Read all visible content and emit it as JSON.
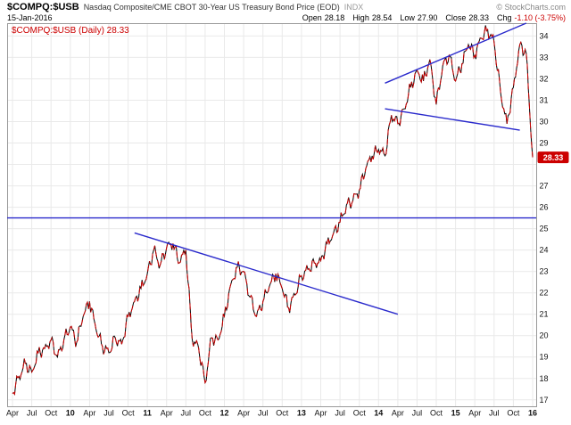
{
  "header": {
    "symbol": "$COMPQ:$USB",
    "description": "Nasdaq Composite/CME CBOT 30-Year US Treasury Bond Price (EOD)",
    "exchange": "INDX",
    "copyright": "© StockCharts.com",
    "date": "15-Jan-2016",
    "quote": {
      "open_label": "Open",
      "open": "28.18",
      "high_label": "High",
      "high": "28.54",
      "low_label": "Low",
      "low": "27.90",
      "close_label": "Close",
      "close": "28.33",
      "chg_label": "Chg",
      "chg": "-1.10 (-3.75%)"
    },
    "legend": "$COMPQ:$USB (Daily) 28.33"
  },
  "colors": {
    "price_line_primary": "#cc0000",
    "price_line_secondary": "#000000",
    "trendline": "#2a2acc",
    "last_price_box": "#cc0000",
    "grid": "#e9e9e9",
    "plot_border": "#999999"
  },
  "chart_data": {
    "type": "line",
    "scale": "linear",
    "title": "$COMPQ:$USB (Daily)",
    "interval": "monthly-sampled daily series",
    "last_price": 28.33,
    "ylim": [
      16.7,
      34.6
    ],
    "y_ticks": [
      34,
      33,
      32,
      31,
      30,
      29,
      28,
      27,
      26,
      25,
      24,
      23,
      22,
      21,
      20,
      19,
      18,
      17
    ],
    "months": [
      "2009-04",
      "2009-05",
      "2009-06",
      "2009-07",
      "2009-08",
      "2009-09",
      "2009-10",
      "2009-11",
      "2009-12",
      "2010-01",
      "2010-02",
      "2010-03",
      "2010-04",
      "2010-05",
      "2010-06",
      "2010-07",
      "2010-08",
      "2010-09",
      "2010-10",
      "2010-11",
      "2010-12",
      "2011-01",
      "2011-02",
      "2011-03",
      "2011-04",
      "2011-05",
      "2011-06",
      "2011-07",
      "2011-08",
      "2011-09",
      "2011-10",
      "2011-11",
      "2011-12",
      "2012-01",
      "2012-02",
      "2012-03",
      "2012-04",
      "2012-05",
      "2012-06",
      "2012-07",
      "2012-08",
      "2012-09",
      "2012-10",
      "2012-11",
      "2012-12",
      "2013-01",
      "2013-02",
      "2013-03",
      "2013-04",
      "2013-05",
      "2013-06",
      "2013-07",
      "2013-08",
      "2013-09",
      "2013-10",
      "2013-11",
      "2013-12",
      "2014-01",
      "2014-02",
      "2014-03",
      "2014-04",
      "2014-05",
      "2014-06",
      "2014-07",
      "2014-08",
      "2014-09",
      "2014-10",
      "2014-11",
      "2014-12",
      "2015-01",
      "2015-02",
      "2015-03",
      "2015-04",
      "2015-05",
      "2015-06",
      "2015-07",
      "2015-08",
      "2015-09",
      "2015-10",
      "2015-11",
      "2015-12",
      "2016-01"
    ],
    "values": [
      17.3,
      18.1,
      18.7,
      18.3,
      19.2,
      19.4,
      19.8,
      19.0,
      19.8,
      20.4,
      19.7,
      20.9,
      21.6,
      20.3,
      19.5,
      19.2,
      19.9,
      19.6,
      20.9,
      21.6,
      22.2,
      22.9,
      24.0,
      23.3,
      24.1,
      24.3,
      23.4,
      24.0,
      19.8,
      19.4,
      17.8,
      19.9,
      19.8,
      20.9,
      22.4,
      23.2,
      23.0,
      21.8,
      20.9,
      21.6,
      22.3,
      22.9,
      22.2,
      21.3,
      21.9,
      22.8,
      23.1,
      23.4,
      23.5,
      24.3,
      24.8,
      25.3,
      26.1,
      26.3,
      26.8,
      27.8,
      28.4,
      28.7,
      28.4,
      30.3,
      29.9,
      30.6,
      31.6,
      32.4,
      31.9,
      32.9,
      30.8,
      32.6,
      33.1,
      31.9,
      32.7,
      33.6,
      33.1,
      33.9,
      34.3,
      33.7,
      31.4,
      29.9,
      31.6,
      33.6,
      33.2,
      28.33
    ],
    "x_ticks": [
      {
        "m": "2009-04",
        "label": "Apr"
      },
      {
        "m": "2009-07",
        "label": "Jul"
      },
      {
        "m": "2009-10",
        "label": "Oct"
      },
      {
        "m": "2010-01",
        "label": "10",
        "bold": true
      },
      {
        "m": "2010-04",
        "label": "Apr"
      },
      {
        "m": "2010-07",
        "label": "Jul"
      },
      {
        "m": "2010-10",
        "label": "Oct"
      },
      {
        "m": "2011-01",
        "label": "11",
        "bold": true
      },
      {
        "m": "2011-04",
        "label": "Apr"
      },
      {
        "m": "2011-07",
        "label": "Jul"
      },
      {
        "m": "2011-10",
        "label": "Oct"
      },
      {
        "m": "2012-01",
        "label": "12",
        "bold": true
      },
      {
        "m": "2012-04",
        "label": "Apr"
      },
      {
        "m": "2012-07",
        "label": "Jul"
      },
      {
        "m": "2012-10",
        "label": "Oct"
      },
      {
        "m": "2013-01",
        "label": "13",
        "bold": true
      },
      {
        "m": "2013-04",
        "label": "Apr"
      },
      {
        "m": "2013-07",
        "label": "Jul"
      },
      {
        "m": "2013-10",
        "label": "Oct"
      },
      {
        "m": "2014-01",
        "label": "14",
        "bold": true
      },
      {
        "m": "2014-04",
        "label": "Apr"
      },
      {
        "m": "2014-07",
        "label": "Jul"
      },
      {
        "m": "2014-10",
        "label": "Oct"
      },
      {
        "m": "2015-01",
        "label": "15",
        "bold": true
      },
      {
        "m": "2015-04",
        "label": "Apr"
      },
      {
        "m": "2015-07",
        "label": "Jul"
      },
      {
        "m": "2015-10",
        "label": "Oct"
      },
      {
        "m": "2016-01",
        "label": "16",
        "bold": true
      }
    ],
    "trendlines": [
      {
        "name": "horizontal-support-line",
        "type": "horizontal",
        "value": 25.5
      },
      {
        "name": "declining-trendline",
        "type": "segment",
        "from": {
          "month": "2010-11",
          "value": 24.8
        },
        "to": {
          "month": "2014-04",
          "value": 21.0
        }
      },
      {
        "name": "upper-wedge-line",
        "type": "segment",
        "from": {
          "month": "2014-02",
          "value": 31.8
        },
        "to": {
          "month": "2015-12",
          "value": 34.6
        }
      },
      {
        "name": "lower-wedge-line",
        "type": "segment",
        "from": {
          "month": "2014-02",
          "value": 30.6
        },
        "to": {
          "month": "2015-11",
          "value": 29.6
        }
      }
    ]
  }
}
